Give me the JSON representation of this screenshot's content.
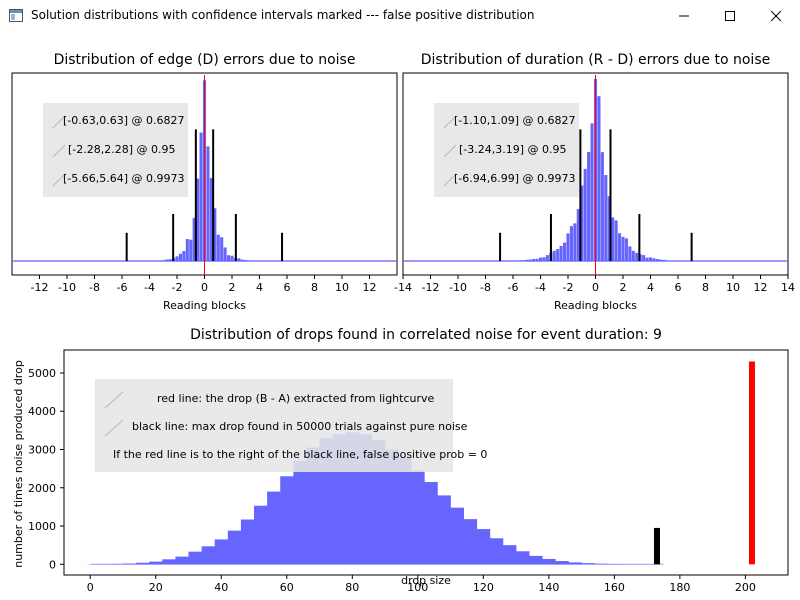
{
  "window": {
    "title": "Solution distributions with confidence intervals marked --- false positive distribution",
    "controls": [
      "minimize",
      "maximize",
      "close"
    ]
  },
  "chart_data": [
    {
      "type": "histogram",
      "title": "Distribution of edge (D) errors due to noise",
      "xlabel": "Reading blocks",
      "ylabel": "",
      "xlim": [
        -14,
        14
      ],
      "xticks": [
        -12,
        -10,
        -8,
        -6,
        -4,
        -2,
        0,
        2,
        4,
        6,
        8,
        10,
        12
      ],
      "fill_color": "#6666ff",
      "red_line_x": 0,
      "distribution_sigma": 0.63,
      "legend": [
        "[-0.63,0.63] @ 0.6827",
        "[-2.28,2.28] @ 0.95",
        "[-5.66,5.64] @ 0.9973"
      ],
      "legend_position": "top-left",
      "confidence_markers": [
        {
          "x": -0.63,
          "level": 0.6827,
          "rel_height": 0.7
        },
        {
          "x": 0.63,
          "level": 0.6827,
          "rel_height": 0.7
        },
        {
          "x": -2.28,
          "level": 0.95,
          "rel_height": 0.25
        },
        {
          "x": 2.28,
          "level": 0.95,
          "rel_height": 0.25
        },
        {
          "x": -5.66,
          "level": 0.9973,
          "rel_height": 0.15
        },
        {
          "x": 5.64,
          "level": 0.9973,
          "rel_height": 0.15
        }
      ]
    },
    {
      "type": "histogram",
      "title": "Distribution of duration (R - D) errors due to noise",
      "xlabel": "Reading blocks",
      "ylabel": "",
      "xlim": [
        -14,
        14
      ],
      "xticks": [
        -14,
        -12,
        -10,
        -8,
        -6,
        -4,
        -2,
        0,
        2,
        4,
        6,
        8,
        10,
        12,
        14
      ],
      "fill_color": "#6666ff",
      "red_line_x": 0,
      "distribution_sigma": 1.1,
      "legend": [
        "[-1.10,1.09] @ 0.6827",
        "[-3.24,3.19] @ 0.95",
        "[-6.94,6.99] @ 0.9973"
      ],
      "legend_position": "top-left",
      "confidence_markers": [
        {
          "x": -1.1,
          "level": 0.6827,
          "rel_height": 0.7
        },
        {
          "x": 1.09,
          "level": 0.6827,
          "rel_height": 0.7
        },
        {
          "x": -3.24,
          "level": 0.95,
          "rel_height": 0.25
        },
        {
          "x": 3.19,
          "level": 0.95,
          "rel_height": 0.25
        },
        {
          "x": -6.94,
          "level": 0.9973,
          "rel_height": 0.15
        },
        {
          "x": 6.99,
          "level": 0.9973,
          "rel_height": 0.15
        }
      ]
    },
    {
      "type": "histogram",
      "title": "Distribution of drops found in correlated noise for event duration: 9",
      "xlabel": "drop size",
      "ylabel": "number of times noise produced drop",
      "xlim": [
        -8,
        213
      ],
      "ylim": [
        -280,
        5600
      ],
      "xticks": [
        0,
        20,
        40,
        60,
        80,
        100,
        120,
        140,
        160,
        180,
        200
      ],
      "yticks": [
        0,
        1000,
        2000,
        3000,
        4000,
        5000
      ],
      "fill_color": "#6666ff",
      "bin_width": 4,
      "bins_x": [
        0,
        4,
        8,
        12,
        16,
        20,
        24,
        28,
        32,
        36,
        40,
        44,
        48,
        52,
        56,
        60,
        64,
        68,
        72,
        76,
        80,
        84,
        88,
        92,
        96,
        100,
        104,
        108,
        112,
        116,
        120,
        124,
        128,
        132,
        136,
        140,
        144,
        148,
        152,
        156,
        160,
        164,
        168
      ],
      "bins_y": [
        2,
        5,
        10,
        20,
        40,
        70,
        130,
        200,
        330,
        470,
        650,
        880,
        1170,
        1530,
        1900,
        2300,
        2700,
        3050,
        3300,
        3400,
        3450,
        3400,
        3250,
        3000,
        2800,
        2450,
        2150,
        1800,
        1480,
        1180,
        920,
        680,
        500,
        340,
        220,
        140,
        85,
        50,
        30,
        15,
        8,
        4,
        2
      ],
      "red_line": {
        "x": 202,
        "height": 5300,
        "color": "#ff0000",
        "label": "red line: the drop (B - A) extracted from lightcurve"
      },
      "black_line": {
        "x": 173,
        "height": 950,
        "color": "#000000",
        "label": "black line: max drop found in 50000 trials against pure noise"
      },
      "legend": [
        "red line: the drop (B - A) extracted from lightcurve",
        "black line: max drop found in 50000 trials against pure noise",
        "If the red line is to the right of the black line, false positive prob = 0"
      ],
      "legend_position": "top-left"
    }
  ]
}
